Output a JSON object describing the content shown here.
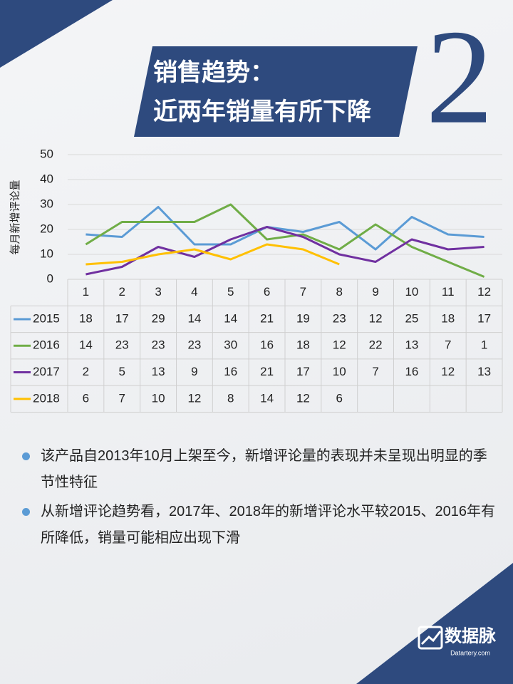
{
  "chart_data": {
    "type": "line",
    "title_line1": "销售趋势：",
    "title_line2": "近两年销量有所下降",
    "big_number": "2",
    "y_label": "每月新增评论量",
    "categories": [
      "1",
      "2",
      "3",
      "4",
      "5",
      "6",
      "7",
      "8",
      "9",
      "10",
      "11",
      "12"
    ],
    "series": [
      {
        "name": "2015",
        "color": "#5b9bd5",
        "values": [
          18,
          17,
          29,
          14,
          14,
          21,
          19,
          23,
          12,
          25,
          18,
          17
        ]
      },
      {
        "name": "2016",
        "color": "#70ad47",
        "values": [
          14,
          23,
          23,
          23,
          30,
          16,
          18,
          12,
          22,
          13,
          7,
          1
        ]
      },
      {
        "name": "2017",
        "color": "#7030a0",
        "values": [
          2,
          5,
          13,
          9,
          16,
          21,
          17,
          10,
          7,
          16,
          12,
          13
        ]
      },
      {
        "name": "2018",
        "color": "#ffc000",
        "values": [
          6,
          7,
          10,
          12,
          8,
          14,
          12,
          6,
          null,
          null,
          null,
          null
        ]
      }
    ],
    "ylim": [
      0,
      50
    ],
    "yticks": [
      0,
      10,
      20,
      30,
      40,
      50
    ],
    "grid": true,
    "bullets": [
      "该产品自2013年10月上架至今，新增评论量的表现并未呈现出明显的季节性特征",
      "从新增评论趋势看，2017年、2018年的新增评论水平较2015、2016年有所降低，销量可能相应出现下滑"
    ],
    "logo_name": "数据脉",
    "logo_site": "Datartery.com"
  }
}
